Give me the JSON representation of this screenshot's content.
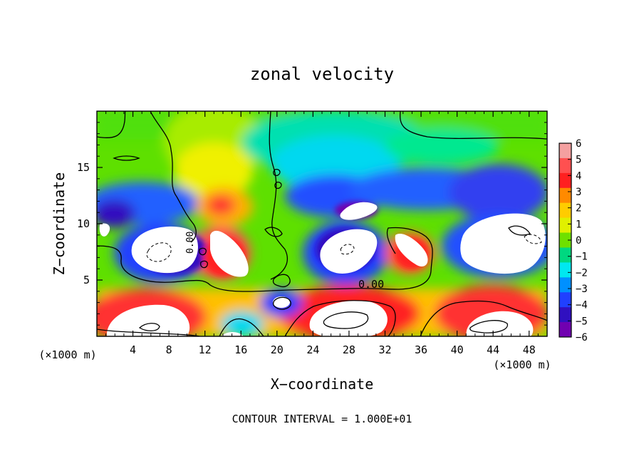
{
  "chart_data": {
    "type": "heatmap",
    "title": "zonal velocity",
    "xlabel": "X−coordinate",
    "ylabel": "Z−coordinate",
    "x_unit_label_left": "(×1000 m)",
    "x_unit_label_right": "(×1000 m)",
    "xlim": [
      0,
      50
    ],
    "ylim": [
      0,
      20
    ],
    "x_ticks": [
      4,
      8,
      12,
      16,
      20,
      24,
      28,
      32,
      36,
      40,
      44,
      48
    ],
    "x_tick_labels": [
      "4",
      "8",
      "12",
      "16",
      "20",
      "24",
      "28",
      "32",
      "36",
      "40",
      "44",
      "48"
    ],
    "y_ticks": [
      5,
      10,
      15
    ],
    "y_tick_labels": [
      "5",
      "10",
      "15"
    ],
    "colorbar": {
      "levels": [
        6,
        5,
        4,
        3,
        2,
        1,
        0,
        -1,
        -2,
        -3,
        -4,
        -5,
        -6
      ],
      "labels": [
        "6",
        "5",
        "4",
        "3",
        "2",
        "1",
        "0",
        "−1",
        "−2",
        "−3",
        "−4",
        "−5",
        "−6"
      ],
      "colors": [
        "#f4a0a0",
        "#ff5050",
        "#ff2020",
        "#ff8a00",
        "#ffcc00",
        "#e0f000",
        "#6fe000",
        "#00d880",
        "#00e8f0",
        "#0090ff",
        "#2040ff",
        "#3010c0",
        "#7000b0"
      ],
      "out_of_range_color": "#ffffff"
    },
    "contour_label": "0.00",
    "contour_interval_text": "CONTOUR INTERVAL = 1.000E+01",
    "features": [
      {
        "kind": "jet",
        "x": 14,
        "z": 11.7,
        "value": 4.5
      },
      {
        "kind": "high",
        "x": 13.5,
        "z": 7.0,
        "value": 7
      },
      {
        "kind": "low",
        "x": 6.5,
        "z": 7.6,
        "value": -7
      },
      {
        "kind": "low",
        "x": 27.0,
        "z": 7.6,
        "value": -7
      },
      {
        "kind": "low",
        "x": 45.0,
        "z": 8.0,
        "value": -7
      },
      {
        "kind": "low",
        "x": 29.5,
        "z": 11.0,
        "value": -6
      },
      {
        "kind": "high",
        "x": 34.5,
        "z": 7.4,
        "value": 5
      },
      {
        "kind": "high",
        "x": 6.0,
        "z": 1.5,
        "value": 7
      },
      {
        "kind": "high",
        "x": 27.0,
        "z": 1.8,
        "value": 7
      },
      {
        "kind": "high",
        "x": 45.0,
        "z": 1.6,
        "value": 7
      },
      {
        "kind": "low",
        "x": 20.5,
        "z": 3.0,
        "value": -6
      },
      {
        "kind": "band",
        "z": 12.5,
        "value": -4
      },
      {
        "kind": "band",
        "z": 18.5,
        "value": -1.5
      }
    ]
  }
}
